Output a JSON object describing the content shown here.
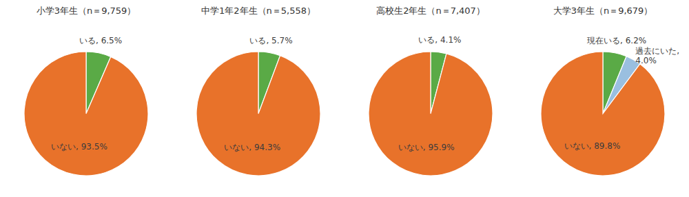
{
  "chart_data": [
    {
      "type": "pie",
      "title": "小学3年生（n＝9,759）",
      "values": [
        6.5,
        93.5
      ],
      "value_labels": [
        "いる, 6.5%",
        "いない, 93.5%"
      ],
      "colors": [
        "#5aaa46",
        "#e8722a"
      ],
      "data_labels": true
    },
    {
      "type": "pie",
      "title": "中学1年2年生（n＝5,558）",
      "values": [
        5.7,
        94.3
      ],
      "value_labels": [
        "いる, 5.7%",
        "いない, 94.3%"
      ],
      "colors": [
        "#5aaa46",
        "#e8722a"
      ],
      "data_labels": true
    },
    {
      "type": "pie",
      "title": "高校生2年生（n＝7,407）",
      "values": [
        4.1,
        95.9
      ],
      "value_labels": [
        "いる, 4.1%",
        "いない, 95.9%"
      ],
      "colors": [
        "#5aaa46",
        "#e8722a"
      ],
      "data_labels": true
    },
    {
      "type": "pie",
      "title": "大学3年生（n＝9,679）",
      "values": [
        6.2,
        4.0,
        89.8
      ],
      "value_labels": [
        "現在いる, 6.2%",
        "過去にいた,\n4.0%",
        "いない, 89.8%"
      ],
      "colors": [
        "#5aaa46",
        "#9abfe0",
        "#e8722a"
      ],
      "data_labels": true
    }
  ]
}
